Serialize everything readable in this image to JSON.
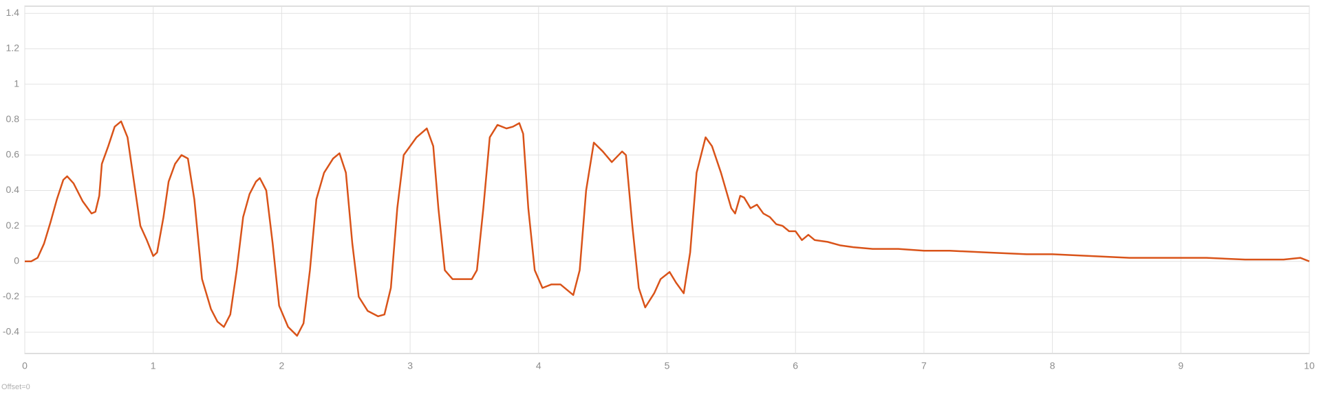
{
  "chart_data": {
    "type": "line",
    "x": [
      0,
      0.05,
      0.1,
      0.15,
      0.2,
      0.25,
      0.3,
      0.33,
      0.38,
      0.45,
      0.52,
      0.55,
      0.58,
      0.6,
      0.65,
      0.7,
      0.75,
      0.8,
      0.85,
      0.9,
      0.95,
      1.0,
      1.03,
      1.08,
      1.12,
      1.17,
      1.22,
      1.27,
      1.32,
      1.38,
      1.45,
      1.5,
      1.55,
      1.6,
      1.65,
      1.7,
      1.75,
      1.8,
      1.83,
      1.88,
      1.93,
      1.98,
      2.05,
      2.12,
      2.17,
      2.22,
      2.27,
      2.33,
      2.4,
      2.45,
      2.5,
      2.55,
      2.6,
      2.67,
      2.75,
      2.8,
      2.85,
      2.9,
      2.95,
      3.05,
      3.13,
      3.18,
      3.22,
      3.27,
      3.33,
      3.42,
      3.48,
      3.52,
      3.57,
      3.62,
      3.68,
      3.75,
      3.8,
      3.85,
      3.88,
      3.92,
      3.97,
      4.03,
      4.1,
      4.17,
      4.22,
      4.27,
      4.32,
      4.37,
      4.43,
      4.5,
      4.57,
      4.65,
      4.68,
      4.73,
      4.78,
      4.83,
      4.9,
      4.95,
      5.02,
      5.07,
      5.13,
      5.18,
      5.23,
      5.3,
      5.35,
      5.42,
      5.5,
      5.53,
      5.57,
      5.6,
      5.65,
      5.7,
      5.75,
      5.8,
      5.85,
      5.9,
      5.95,
      6.0,
      6.05,
      6.1,
      6.15,
      6.25,
      6.35,
      6.45,
      6.6,
      6.8,
      7.0,
      7.2,
      7.5,
      7.8,
      8.0,
      8.3,
      8.6,
      9.0,
      9.2,
      9.5,
      9.8,
      9.93,
      10
    ],
    "values": [
      0,
      0,
      0.02,
      0.1,
      0.22,
      0.35,
      0.46,
      0.48,
      0.44,
      0.34,
      0.27,
      0.28,
      0.37,
      0.55,
      0.65,
      0.76,
      0.79,
      0.7,
      0.45,
      0.2,
      0.12,
      0.03,
      0.05,
      0.25,
      0.45,
      0.55,
      0.6,
      0.58,
      0.35,
      -0.1,
      -0.27,
      -0.34,
      -0.37,
      -0.3,
      -0.05,
      0.25,
      0.38,
      0.45,
      0.47,
      0.4,
      0.1,
      -0.25,
      -0.37,
      -0.42,
      -0.35,
      -0.05,
      0.35,
      0.5,
      0.58,
      0.61,
      0.5,
      0.1,
      -0.2,
      -0.28,
      -0.31,
      -0.3,
      -0.15,
      0.3,
      0.6,
      0.7,
      0.75,
      0.65,
      0.3,
      -0.05,
      -0.1,
      -0.1,
      -0.1,
      -0.05,
      0.3,
      0.7,
      0.77,
      0.75,
      0.76,
      0.78,
      0.72,
      0.3,
      -0.05,
      -0.15,
      -0.13,
      -0.13,
      -0.16,
      -0.19,
      -0.05,
      0.4,
      0.67,
      0.62,
      0.56,
      0.62,
      0.6,
      0.2,
      -0.15,
      -0.26,
      -0.18,
      -0.1,
      -0.06,
      -0.12,
      -0.18,
      0.05,
      0.5,
      0.7,
      0.65,
      0.5,
      0.3,
      0.27,
      0.37,
      0.36,
      0.3,
      0.32,
      0.27,
      0.25,
      0.21,
      0.2,
      0.17,
      0.17,
      0.12,
      0.15,
      0.12,
      0.11,
      0.09,
      0.08,
      0.07,
      0.07,
      0.06,
      0.06,
      0.05,
      0.04,
      0.04,
      0.03,
      0.02,
      0.02,
      0.02,
      0.01,
      0.01,
      0.02,
      0
    ],
    "color": "#d95319",
    "xlim": [
      0,
      10
    ],
    "xticks": [
      0,
      1,
      2,
      3,
      4,
      5,
      6,
      7,
      8,
      9,
      10
    ],
    "ylim": [
      -0.52,
      1.44
    ],
    "yticks": [
      -0.4,
      -0.2,
      0,
      0.2,
      0.4,
      0.6,
      0.8,
      1,
      1.2,
      1.4
    ],
    "grid": true,
    "annotation": "Offset=0"
  }
}
